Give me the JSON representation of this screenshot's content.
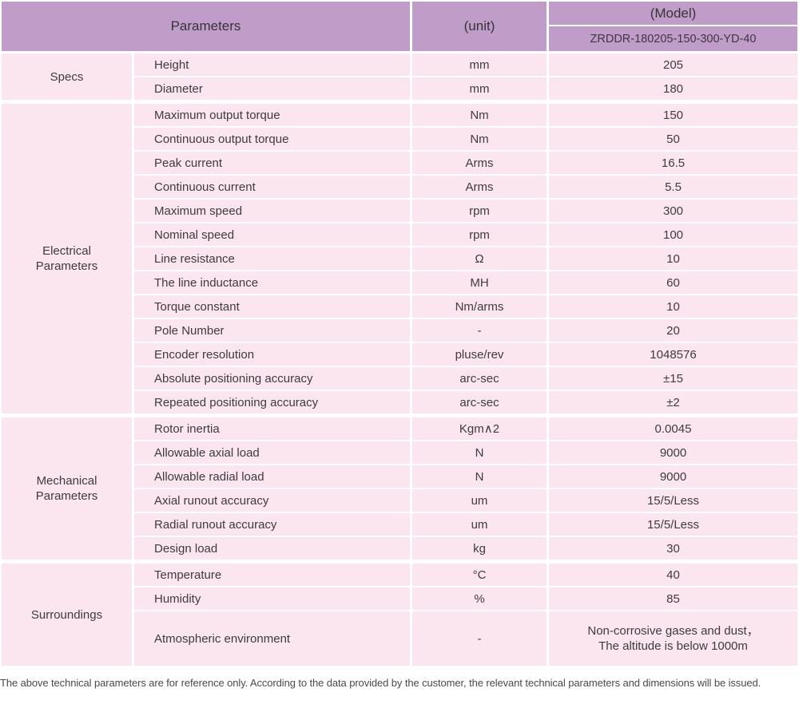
{
  "colors": {
    "header_bg": "#c09dc8",
    "row_bg": "#fbe6f0",
    "text": "#3f3a40",
    "footer_text": "#4a4a4a"
  },
  "table": {
    "header": {
      "parameters_label": "Parameters",
      "unit_label": "(unit)",
      "model_label": "(Model)",
      "model_value": "ZRDDR-180205-150-300-YD-40"
    },
    "sections": [
      {
        "group": "Specs",
        "rows": [
          {
            "param": "Height",
            "unit": "mm",
            "value": "205"
          },
          {
            "param": "Diameter",
            "unit": "mm",
            "value": "180"
          }
        ]
      },
      {
        "group": "Electrical\nParameters",
        "rows": [
          {
            "param": "Maximum output torque",
            "unit": "Nm",
            "value": "150"
          },
          {
            "param": "Continuous output torque",
            "unit": "Nm",
            "value": "50"
          },
          {
            "param": "Peak current",
            "unit": "Arms",
            "value": "16.5"
          },
          {
            "param": "Continuous current",
            "unit": "Arms",
            "value": "5.5"
          },
          {
            "param": "Maximum speed",
            "unit": "rpm",
            "value": "300"
          },
          {
            "param": "Nominal speed",
            "unit": "rpm",
            "value": "100"
          },
          {
            "param": "Line resistance",
            "unit": "Ω",
            "value": "10"
          },
          {
            "param": "The line inductance",
            "unit": "MH",
            "value": "60"
          },
          {
            "param": "Torque constant",
            "unit": "Nm/arms",
            "value": "10"
          },
          {
            "param": "Pole Number",
            "unit": "-",
            "value": "20"
          },
          {
            "param": "Encoder resolution",
            "unit": "pluse/rev",
            "value": "1048576"
          },
          {
            "param": "Absolute positioning accuracy",
            "unit": "arc-sec",
            "value": "±15"
          },
          {
            "param": "Repeated positioning accuracy",
            "unit": "arc-sec",
            "value": "±2"
          }
        ]
      },
      {
        "group": "Mechanical\nParameters",
        "rows": [
          {
            "param": "Rotor inertia",
            "unit": "Kgm∧2",
            "value": "0.0045"
          },
          {
            "param": "Allowable axial load",
            "unit": "N",
            "value": "9000"
          },
          {
            "param": "Allowable radial load",
            "unit": "N",
            "value": "9000"
          },
          {
            "param": "Axial runout accuracy",
            "unit": "um",
            "value": "15/5/Less"
          },
          {
            "param": "Radial runout accuracy",
            "unit": "um",
            "value": "15/5/Less"
          },
          {
            "param": "Design load",
            "unit": "kg",
            "value": "30"
          }
        ]
      },
      {
        "group": "Surroundings",
        "rows": [
          {
            "param": "Temperature",
            "unit": "°C",
            "value": "40"
          },
          {
            "param": "Humidity",
            "unit": "%",
            "value": "85"
          },
          {
            "param": "Atmospheric environment",
            "unit": "-",
            "value": "Non-corrosive gases and dust，\nThe altitude is below 1000m"
          }
        ]
      }
    ],
    "footer_note": "The above technical parameters are for reference only. According to the data provided by the customer, the relevant technical parameters and dimensions will be issued."
  }
}
